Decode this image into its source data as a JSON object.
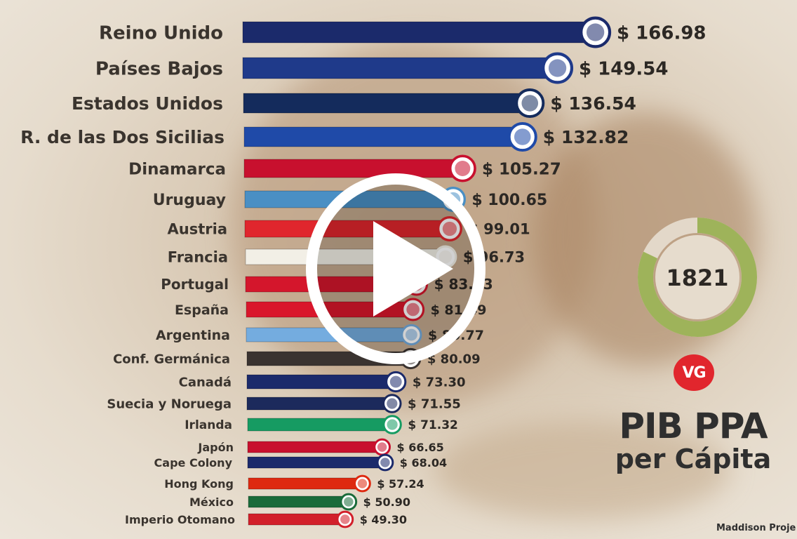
{
  "chart_data": {
    "type": "bar",
    "orientation": "horizontal",
    "categories": [
      "Reino Unido",
      "Países Bajos",
      "Estados Unidos",
      "R. de las Dos Sicilias",
      "Dinamarca",
      "Uruguay",
      "Austria",
      "Francia",
      "Portugal",
      "España",
      "Argentina",
      "Conf. Germánica",
      "Canadá",
      "Suecia y Noruega",
      "Irlanda",
      "Japón",
      "Cape Colony",
      "Hong Kong",
      "México",
      "Imperio Otomano"
    ],
    "values": [
      166.98,
      149.54,
      136.54,
      132.82,
      105.27,
      100.65,
      99.01,
      96.73,
      83.43,
      81.49,
      80.77,
      80.09,
      73.3,
      71.55,
      71.32,
      66.65,
      68.04,
      57.24,
      50.9,
      49.3
    ],
    "value_labels": [
      "$ 166.98",
      "$ 149.54",
      "$ 136.54",
      "$ 132.82",
      "$ 105.27",
      "$ 100.65",
      "$ 99.01",
      "$ 96.73",
      "$ 83.43",
      "$ 81.49",
      "$ 80.77",
      "$ 80.09",
      "$ 73.30",
      "$ 71.55",
      "$ 71.32",
      "$ 66.65",
      "$ 68.04",
      "$ 57.24",
      "$ 50.90",
      "$ 49.30"
    ],
    "bar_colors": [
      "#1b2a6b",
      "#1f3a8a",
      "#142b5c",
      "#1f4aa8",
      "#c8102e",
      "#4a8fc4",
      "#e0262d",
      "#f2efe6",
      "#d4162c",
      "#d9162b",
      "#74acdf",
      "#3a3330",
      "#1b2a6b",
      "#1c2a5c",
      "#169b62",
      "#c8102e",
      "#1b2a6b",
      "#de2910",
      "#1a6b3a",
      "#d21f2a"
    ],
    "flags": [
      "uk-flag",
      "netherlands-flag",
      "usa-flag",
      "two-sicilies-flag",
      "denmark-flag",
      "uruguay-flag",
      "austria-flag",
      "france-flag",
      "portugal-flag",
      "spain-flag",
      "argentina-flag",
      "germanic-confederation-flag",
      "canada-flag",
      "sweden-norway-flag",
      "ireland-flag",
      "japan-flag",
      "cape-colony-flag",
      "hong-kong-flag",
      "mexico-flag",
      "ottoman-flag"
    ],
    "year": "1821",
    "year_progress": 0.82
  },
  "brand": {
    "logo_text": "VG",
    "logo_color": "#e1262d"
  },
  "title": {
    "line1": "PIB PPA",
    "line2": "per Cápita"
  },
  "source": "Maddison Proje",
  "play_icon": "play-icon"
}
